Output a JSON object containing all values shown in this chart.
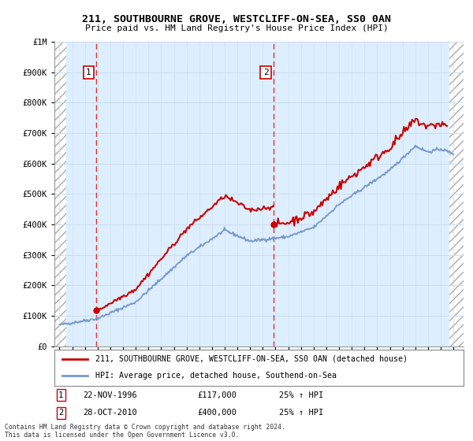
{
  "title": "211, SOUTHBOURNE GROVE, WESTCLIFF-ON-SEA, SS0 0AN",
  "subtitle": "Price paid vs. HM Land Registry's House Price Index (HPI)",
  "ylim": [
    0,
    1000000
  ],
  "xlim_start": 1993.6,
  "xlim_end": 2025.8,
  "ytick_labels": [
    "£0",
    "£100K",
    "£200K",
    "£300K",
    "£400K",
    "£500K",
    "£600K",
    "£700K",
    "£800K",
    "£900K",
    "£1M"
  ],
  "ytick_values": [
    0,
    100000,
    200000,
    300000,
    400000,
    500000,
    600000,
    700000,
    800000,
    900000,
    1000000
  ],
  "purchase_dates": [
    1996.9,
    2010.83
  ],
  "purchase_prices": [
    117000,
    400000
  ],
  "purchase_labels": [
    "1",
    "2"
  ],
  "legend_entries": [
    "211, SOUTHBOURNE GROVE, WESTCLIFF-ON-SEA, SS0 0AN (detached house)",
    "HPI: Average price, detached house, Southend-on-Sea"
  ],
  "annotation_rows": [
    [
      "1",
      "22-NOV-1996",
      "£117,000",
      "25% ↑ HPI"
    ],
    [
      "2",
      "28-OCT-2010",
      "£400,000",
      "25% ↑ HPI"
    ]
  ],
  "footnote": "Contains HM Land Registry data © Crown copyright and database right 2024.\nThis data is licensed under the Open Government Licence v3.0.",
  "line_color_red": "#cc0000",
  "line_color_blue": "#7799cc",
  "grid_color": "#ccddee",
  "bg_color": "#ddeeff",
  "dashed_line_color": "#dd3333",
  "hatch_data_start": 1994.5,
  "hatch_data_end": 2024.7,
  "x_ticks": [
    1994,
    1995,
    1996,
    1997,
    1998,
    1999,
    2000,
    2001,
    2002,
    2003,
    2004,
    2005,
    2006,
    2007,
    2008,
    2009,
    2010,
    2011,
    2012,
    2013,
    2014,
    2015,
    2016,
    2017,
    2018,
    2019,
    2020,
    2021,
    2022,
    2023,
    2024,
    2025
  ]
}
